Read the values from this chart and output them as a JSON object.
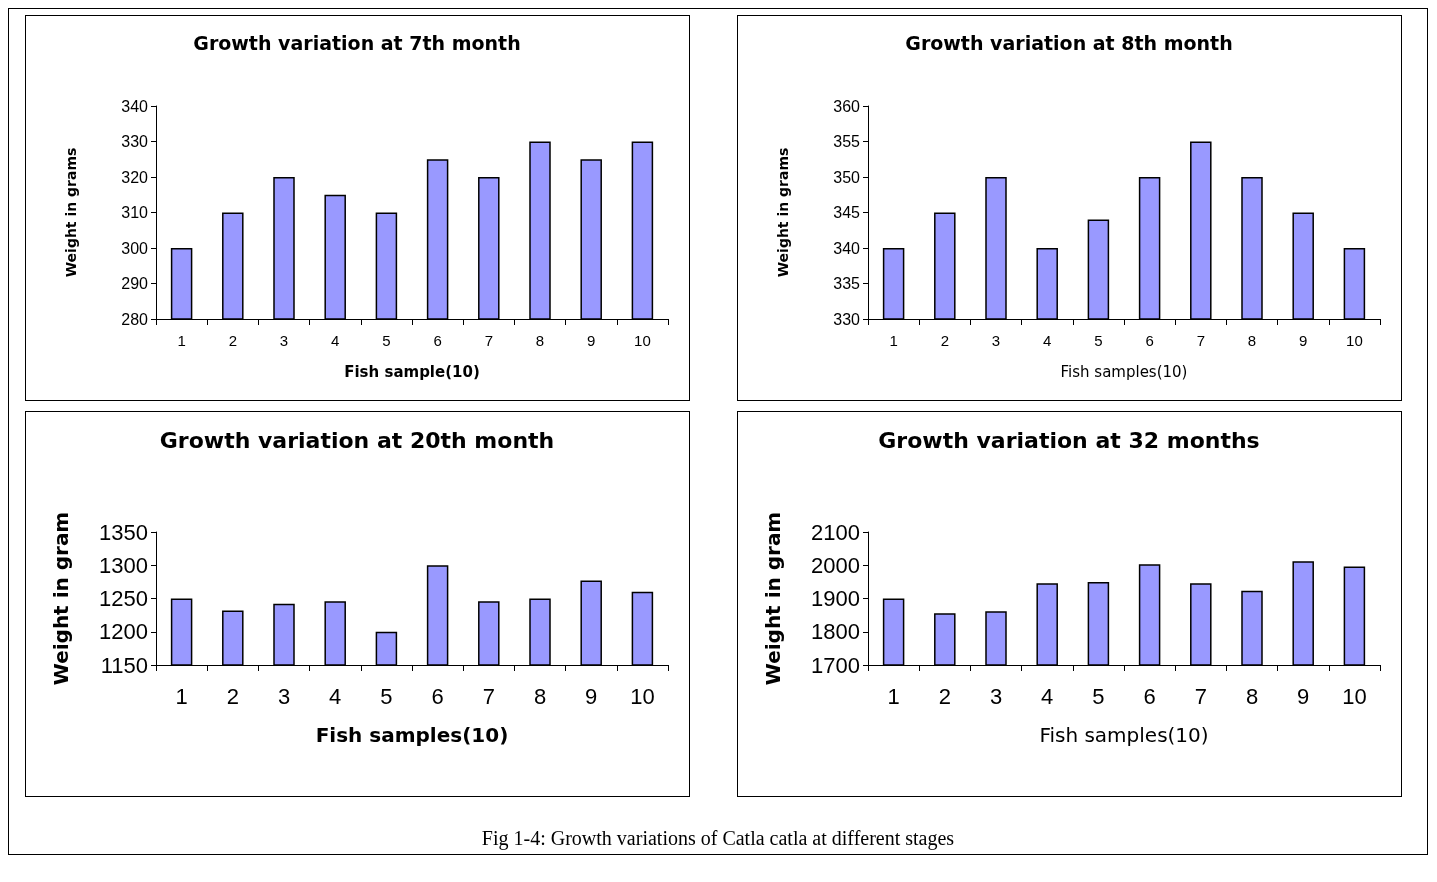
{
  "chart_data": [
    {
      "type": "bar",
      "title": "Growth variation at 7th month",
      "xlabel": "Fish sample(10)",
      "ylabel": "Weight in grams",
      "categories": [
        "1",
        "2",
        "3",
        "4",
        "5",
        "6",
        "7",
        "8",
        "9",
        "10"
      ],
      "color": "#9999ff",
      "values": [
        300,
        310,
        320,
        315,
        310,
        325,
        320,
        330,
        325,
        330
      ],
      "ylim": [
        280,
        340
      ],
      "yticks": [
        280,
        290,
        300,
        310,
        320,
        330,
        340
      ],
      "grid": false
    },
    {
      "type": "bar",
      "title": "Growth variation at 8th month",
      "xlabel": "Fish samples(10)",
      "ylabel": "Weight in grams",
      "categories": [
        "1",
        "2",
        "3",
        "4",
        "5",
        "6",
        "7",
        "8",
        "9",
        "10"
      ],
      "color": "#9999ff",
      "values": [
        340,
        345,
        350,
        340,
        344,
        350,
        355,
        350,
        345,
        340
      ],
      "ylim": [
        330,
        360
      ],
      "yticks": [
        330,
        335,
        340,
        345,
        350,
        355,
        360
      ],
      "grid": false
    },
    {
      "type": "bar",
      "title": "Growth variation at 20th month",
      "xlabel": "Fish samples(10)",
      "ylabel": "Weight in gram",
      "categories": [
        "1",
        "2",
        "3",
        "4",
        "5",
        "6",
        "7",
        "8",
        "9",
        "10"
      ],
      "color": "#9999ff",
      "values": [
        1250,
        1232,
        1242,
        1246,
        1200,
        1300,
        1246,
        1250,
        1277,
        1260
      ],
      "ylim": [
        1150,
        1350
      ],
      "yticks": [
        1150,
        1200,
        1250,
        1300,
        1350
      ],
      "grid": false
    },
    {
      "type": "bar",
      "title": "Growth variation at 32 months",
      "xlabel": "Fish samples(10)",
      "ylabel": "Weight in gram",
      "categories": [
        "1",
        "2",
        "3",
        "4",
        "5",
        "6",
        "7",
        "8",
        "9",
        "10"
      ],
      "color": "#9999ff",
      "values": [
        1900,
        1856,
        1862,
        1946,
        1950,
        2003,
        1946,
        1923,
        2012,
        1996
      ],
      "ylim": [
        1700,
        2100
      ],
      "yticks": [
        1700,
        1800,
        1900,
        2000,
        2100
      ],
      "grid": false,
      "annotations": [
        "Fig 1-4: Growth variations of Catla catla at different stages"
      ]
    }
  ]
}
